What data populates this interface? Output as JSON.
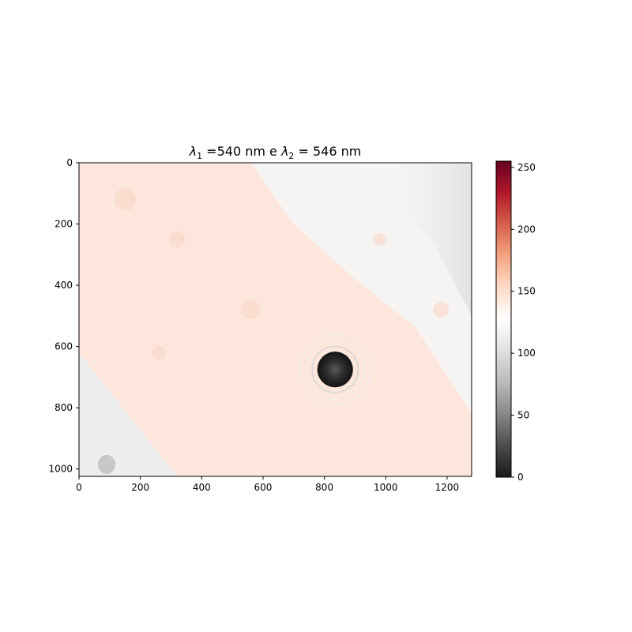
{
  "chart_data": {
    "type": "heatmap",
    "title": {
      "symbol": "λ",
      "sub1": "1",
      "part1": " =540 nm e ",
      "sub2": "2",
      "part2": " = 546 nm"
    },
    "xlabel": "",
    "ylabel": "",
    "x_range": [
      0,
      1280
    ],
    "y_range": [
      0,
      1024
    ],
    "y_inverted": true,
    "x_ticks": [
      0,
      200,
      400,
      600,
      800,
      1000,
      1200
    ],
    "y_ticks": [
      0,
      200,
      400,
      600,
      800,
      1000
    ],
    "colorbar": {
      "range": [
        0,
        255
      ],
      "ticks": [
        0,
        50,
        100,
        150,
        200,
        250
      ],
      "colormap": "RdGy_r",
      "colors": [
        "#1a1a1a",
        "#4d4d4d",
        "#878787",
        "#bababa",
        "#e0e0e0",
        "#ffffff",
        "#fddbc7",
        "#f4a582",
        "#d6604d",
        "#b2182b",
        "#67001f"
      ]
    },
    "image_description_colors": {
      "background_tint": "#fde7dc",
      "grey_region": "#eeeeee",
      "dark_spot": "#2a2a2a"
    },
    "features": {
      "dark_spot_center": [
        835,
        675
      ],
      "dark_spot_radius": 58,
      "ring_radii": [
        75,
        95,
        115
      ]
    }
  }
}
